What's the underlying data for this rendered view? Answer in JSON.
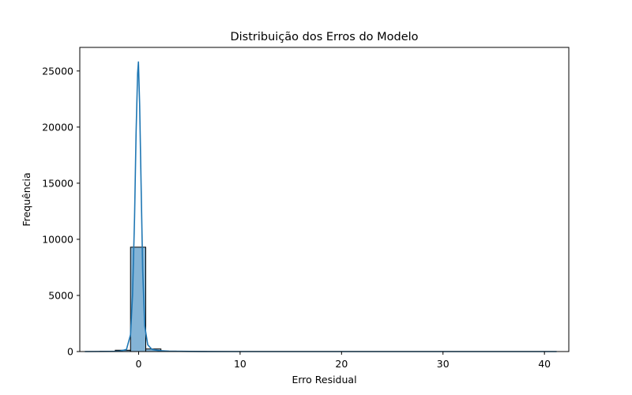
{
  "chart_data": {
    "type": "bar",
    "title": "Distribuição dos Erros do Modelo",
    "xlabel": "Erro Residual",
    "ylabel": "Frequência",
    "xlim": [
      -5.8,
      42.4
    ],
    "ylim": [
      0,
      27100
    ],
    "xticks": [
      0,
      10,
      20,
      30,
      40
    ],
    "yticks": [
      0,
      5000,
      10000,
      15000,
      20000,
      25000
    ],
    "grid": false,
    "bar_color": "#1f77b4",
    "kde_color": "#1f77b4",
    "bins": [
      {
        "x0": -5.3,
        "x1": -3.8,
        "count": 0
      },
      {
        "x0": -3.8,
        "x1": -2.3,
        "count": 20
      },
      {
        "x0": -2.3,
        "x1": -0.8,
        "count": 120
      },
      {
        "x0": -0.8,
        "x1": 0.7,
        "count": 9300
      },
      {
        "x0": 0.7,
        "x1": 2.2,
        "count": 230
      },
      {
        "x0": 2.2,
        "x1": 3.7,
        "count": 40
      },
      {
        "x0": 3.7,
        "x1": 5.2,
        "count": 10
      },
      {
        "x0": 5.2,
        "x1": 6.7,
        "count": 5
      }
    ],
    "kde": {
      "x": [
        -5.3,
        -2.0,
        -1.2,
        -0.8,
        -0.6,
        -0.4,
        -0.25,
        -0.1,
        -0.02,
        0.1,
        0.25,
        0.4,
        0.6,
        0.9,
        1.3,
        2.0,
        3.0,
        5.0,
        10,
        20,
        30,
        41.2
      ],
      "y": [
        0,
        20,
        180,
        1500,
        5000,
        12000,
        19500,
        24800,
        25800,
        22000,
        14500,
        7200,
        2300,
        600,
        200,
        80,
        30,
        10,
        0,
        0,
        0,
        0
      ]
    }
  }
}
